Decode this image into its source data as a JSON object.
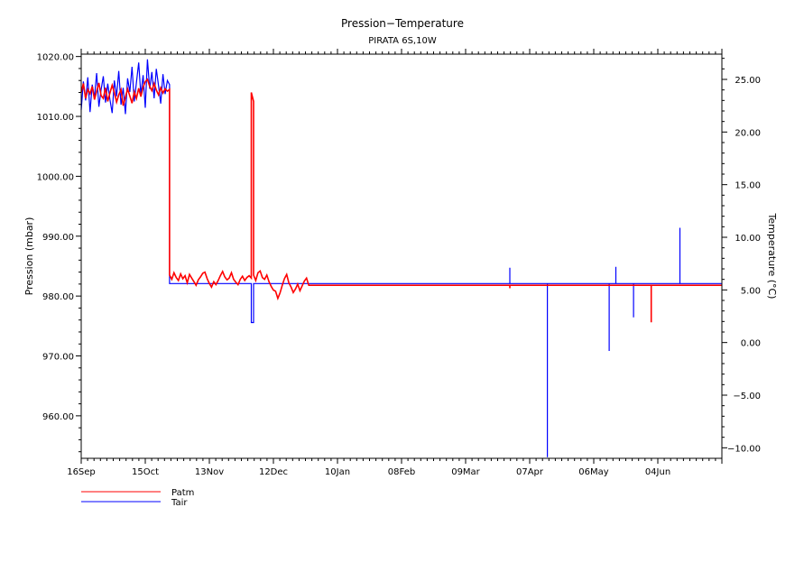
{
  "chart_data": {
    "type": "line",
    "title": "Pression−Temperature",
    "subtitle": "PIRATA 6S,10W",
    "ylabel_left": "Pression (mbar)",
    "ylabel_right": "Temperature (°C)",
    "xlabel": "",
    "ylim_left": [
      952.9,
      1020.4
    ],
    "ylim_right": [
      -11.0,
      27.4
    ],
    "xlim": [
      "Sep 16",
      "Jul 3"
    ],
    "x_tick_labels": [
      "16Sep",
      "15Oct",
      "13Nov",
      "12Dec",
      "10Jan",
      "08Feb",
      "09Mar",
      "07Apr",
      "06May",
      "04Jun"
    ],
    "x_tick_dates": [
      "Sep 16",
      "Oct 15",
      "Nov 13",
      "Dec 12",
      "Jan 10",
      "Feb 8",
      "Mar 9",
      "Apr 7",
      "May 6",
      "Jun 4"
    ],
    "y_left_ticks": [
      1020,
      1010,
      1000,
      990,
      980,
      970,
      960
    ],
    "y_left_tick_labels": [
      "1020.00",
      "1010.00",
      "1000.00",
      "990.00",
      "980.00",
      "970.00",
      "960.00"
    ],
    "y_right_ticks": [
      25,
      20,
      15,
      10,
      5,
      0,
      -5,
      -10
    ],
    "y_right_tick_labels": [
      "25.00",
      "20.00",
      "15.00",
      "10.00",
      "5.00",
      "0.00",
      "−5.00",
      "−10.00"
    ],
    "grid": false,
    "legend_position": "bottom-left",
    "series": [
      {
        "name": "Tair",
        "axis": "right",
        "color": "#0000ff",
        "points": [
          [
            "Sep 16",
            22.1
          ],
          [
            "Sep 17",
            24.8
          ],
          [
            "Sep 18",
            23.0
          ],
          [
            "Sep 19",
            25.2
          ],
          [
            "Sep 20",
            21.9
          ],
          [
            "Sep 21",
            24.5
          ],
          [
            "Sep 22",
            23.3
          ],
          [
            "Sep 23",
            25.6
          ],
          [
            "Sep 24",
            22.4
          ],
          [
            "Sep 25",
            24.0
          ],
          [
            "Sep 26",
            25.3
          ],
          [
            "Sep 27",
            22.8
          ],
          [
            "Sep 28",
            24.6
          ],
          [
            "Sep 29",
            23.1
          ],
          [
            "Sep 30",
            21.8
          ],
          [
            "Oct 1",
            24.9
          ],
          [
            "Oct 2",
            23.4
          ],
          [
            "Oct 3",
            25.8
          ],
          [
            "Oct 4",
            22.6
          ],
          [
            "Oct 5",
            24.2
          ],
          [
            "Oct 6",
            21.7
          ],
          [
            "Oct 7",
            25.1
          ],
          [
            "Oct 8",
            23.8
          ],
          [
            "Oct 9",
            26.2
          ],
          [
            "Oct 10",
            22.9
          ],
          [
            "Oct 11",
            24.7
          ],
          [
            "Oct 12",
            26.6
          ],
          [
            "Oct 13",
            23.5
          ],
          [
            "Oct 14",
            25.4
          ],
          [
            "Oct 15",
            22.3
          ],
          [
            "Oct 16",
            26.9
          ],
          [
            "Oct 17",
            24.1
          ],
          [
            "Oct 18",
            25.7
          ],
          [
            "Oct 19",
            23.2
          ],
          [
            "Oct 20",
            26.0
          ],
          [
            "Oct 21",
            24.4
          ],
          [
            "Oct 22",
            22.7
          ],
          [
            "Oct 23",
            25.5
          ],
          [
            "Oct 24",
            23.6
          ],
          [
            "Oct 25",
            24.9
          ],
          [
            "Oct 26",
            24.5
          ],
          [
            "Oct 26",
            5.6
          ],
          [
            "Dec 2",
            5.6
          ],
          [
            "Dec 2",
            1.9
          ],
          [
            "Dec 3",
            1.9
          ],
          [
            "Dec 3",
            5.6
          ],
          [
            "Mar 29",
            5.6
          ],
          [
            "Mar 29",
            7.1
          ],
          [
            "Mar 29",
            5.6
          ],
          [
            "Apr 15",
            5.6
          ],
          [
            "Apr 15",
            -10.9
          ],
          [
            "Apr 15",
            5.6
          ],
          [
            "May 13",
            5.6
          ],
          [
            "May 13",
            -0.8
          ],
          [
            "May 13",
            5.6
          ],
          [
            "May 16",
            5.6
          ],
          [
            "May 16",
            7.2
          ],
          [
            "May 16",
            5.6
          ],
          [
            "May 24",
            5.6
          ],
          [
            "May 24",
            2.4
          ],
          [
            "May 24",
            5.6
          ],
          [
            "Jun 14",
            5.6
          ],
          [
            "Jun 14",
            10.9
          ],
          [
            "Jun 14",
            5.6
          ],
          [
            "Jul 3",
            5.6
          ]
        ]
      },
      {
        "name": "Patm",
        "axis": "left",
        "color": "#ff0000",
        "points": [
          [
            "Sep 16",
            1014
          ],
          [
            "Sep 17",
            1015.5
          ],
          [
            "Sep 18",
            1013
          ],
          [
            "Sep 19",
            1014.5
          ],
          [
            "Sep 20",
            1013.8
          ],
          [
            "Sep 21",
            1015
          ],
          [
            "Sep 22",
            1012.8
          ],
          [
            "Sep 23",
            1014.2
          ],
          [
            "Sep 24",
            1015.6
          ],
          [
            "Sep 25",
            1013.5
          ],
          [
            "Sep 26",
            1013
          ],
          [
            "Sep 27",
            1014.8
          ],
          [
            "Sep 28",
            1012.5
          ],
          [
            "Sep 29",
            1013.9
          ],
          [
            "Sep 30",
            1015.2
          ],
          [
            "Oct 1",
            1014
          ],
          [
            "Oct 2",
            1012.4
          ],
          [
            "Oct 3",
            1013.6
          ],
          [
            "Oct 4",
            1014.5
          ],
          [
            "Oct 5",
            1011.8
          ],
          [
            "Oct 6",
            1013.2
          ],
          [
            "Oct 7",
            1014.6
          ],
          [
            "Oct 8",
            1013.4
          ],
          [
            "Oct 9",
            1012.2
          ],
          [
            "Oct 10",
            1014.1
          ],
          [
            "Oct 11",
            1013
          ],
          [
            "Oct 12",
            1014.7
          ],
          [
            "Oct 13",
            1013.3
          ],
          [
            "Oct 14",
            1014.9
          ],
          [
            "Oct 15",
            1015.8
          ],
          [
            "Oct 16",
            1016.2
          ],
          [
            "Oct 17",
            1015
          ],
          [
            "Oct 18",
            1014.3
          ],
          [
            "Oct 19",
            1015.5
          ],
          [
            "Oct 20",
            1014.4
          ],
          [
            "Oct 21",
            1013.6
          ],
          [
            "Oct 22",
            1014.8
          ],
          [
            "Oct 23",
            1013.9
          ],
          [
            "Oct 24",
            1014.6
          ],
          [
            "Oct 25",
            1014.2
          ],
          [
            "Oct 26",
            1014.5
          ],
          [
            "Oct 26",
            983.5
          ],
          [
            "Oct 27",
            982.8
          ],
          [
            "Oct 28",
            983.9
          ],
          [
            "Oct 29",
            983.1
          ],
          [
            "Oct 30",
            982.6
          ],
          [
            "Oct 31",
            983.7
          ],
          [
            "Nov 1",
            982.9
          ],
          [
            "Nov 2",
            983.4
          ],
          [
            "Nov 3",
            982.2
          ],
          [
            "Nov 4",
            983.6
          ],
          [
            "Nov 5",
            983.0
          ],
          [
            "Nov 6",
            982.4
          ],
          [
            "Nov 7",
            981.8
          ],
          [
            "Nov 8",
            982.7
          ],
          [
            "Nov 9",
            983.2
          ],
          [
            "Nov 10",
            983.8
          ],
          [
            "Nov 11",
            984.0
          ],
          [
            "Nov 12",
            982.9
          ],
          [
            "Nov 13",
            982.1
          ],
          [
            "Nov 14",
            981.5
          ],
          [
            "Nov 15",
            982.4
          ],
          [
            "Nov 16",
            981.9
          ],
          [
            "Nov 17",
            982.6
          ],
          [
            "Nov 18",
            983.4
          ],
          [
            "Nov 19",
            984.1
          ],
          [
            "Nov 20",
            983.2
          ],
          [
            "Nov 21",
            982.7
          ],
          [
            "Nov 22",
            983.0
          ],
          [
            "Nov 23",
            983.9
          ],
          [
            "Nov 24",
            982.8
          ],
          [
            "Nov 25",
            982.3
          ],
          [
            "Nov 26",
            981.9
          ],
          [
            "Nov 27",
            982.8
          ],
          [
            "Nov 28",
            983.3
          ],
          [
            "Nov 29",
            982.6
          ],
          [
            "Nov 30",
            983.1
          ],
          [
            "Dec 1",
            983.4
          ],
          [
            "Dec 2",
            983.0
          ],
          [
            "Dec 2",
            1014.0
          ],
          [
            "Dec 3",
            1012.5
          ],
          [
            "Dec 3",
            983.5
          ],
          [
            "Dec 4",
            982.6
          ],
          [
            "Dec 5",
            983.9
          ],
          [
            "Dec 6",
            984.2
          ],
          [
            "Dec 7",
            983.1
          ],
          [
            "Dec 8",
            982.8
          ],
          [
            "Dec 9",
            983.5
          ],
          [
            "Dec 10",
            982.4
          ],
          [
            "Dec 11",
            981.6
          ],
          [
            "Dec 12",
            981.0
          ],
          [
            "Dec 13",
            980.8
          ],
          [
            "Dec 14",
            979.6
          ],
          [
            "Dec 15",
            980.5
          ],
          [
            "Dec 16",
            981.8
          ],
          [
            "Dec 17",
            982.9
          ],
          [
            "Dec 18",
            983.6
          ],
          [
            "Dec 19",
            982.2
          ],
          [
            "Dec 20",
            981.5
          ],
          [
            "Dec 21",
            980.6
          ],
          [
            "Dec 22",
            981.2
          ],
          [
            "Dec 23",
            982.0
          ],
          [
            "Dec 24",
            980.9
          ],
          [
            "Dec 25",
            981.7
          ],
          [
            "Dec 26",
            982.5
          ],
          [
            "Dec 27",
            983.0
          ],
          [
            "Dec 28",
            981.8
          ],
          [
            "Mar 29",
            981.8
          ],
          [
            "Mar 29",
            981.3
          ],
          [
            "Mar 29",
            981.8
          ],
          [
            "Jun 1",
            981.8
          ],
          [
            "Jun 1",
            975.6
          ],
          [
            "Jun 1",
            981.8
          ],
          [
            "Jul 3",
            981.8
          ]
        ]
      }
    ]
  }
}
